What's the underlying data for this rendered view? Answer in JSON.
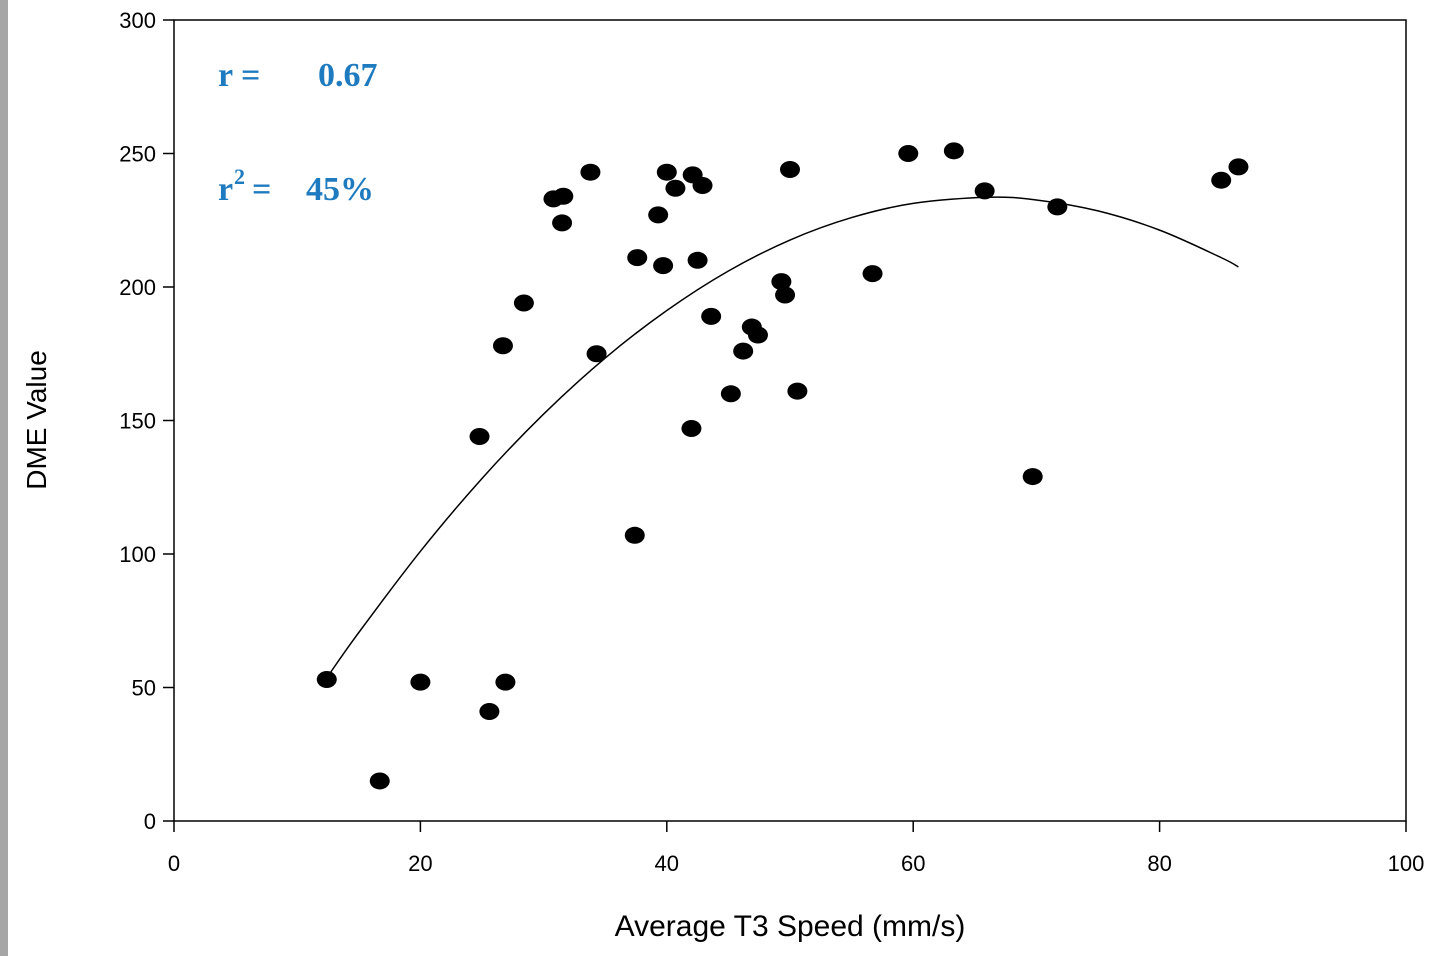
{
  "chart_data": {
    "type": "scatter",
    "x_label": "Average T3 Speed (mm/s)",
    "y_label": "DME Value",
    "xlim": [
      0,
      100
    ],
    "xticks": [
      0,
      20,
      40,
      60,
      80,
      100
    ],
    "ylim": [
      0,
      300
    ],
    "yticks": [
      0,
      50,
      100,
      150,
      200,
      250,
      300
    ],
    "grid": false,
    "color": "#000000",
    "x": [
      12.4,
      16.7,
      20.0,
      24.8,
      25.6,
      26.9,
      26.7,
      28.4,
      30.8,
      31.6,
      31.5,
      33.8,
      34.3,
      37.4,
      37.6,
      39.3,
      39.7,
      40.0,
      40.7,
      42.0,
      42.1,
      42.5,
      42.9,
      43.6,
      45.2,
      46.2,
      46.9,
      47.4,
      49.3,
      49.6,
      50.0,
      50.6,
      56.7,
      59.6,
      63.3,
      65.8,
      69.7,
      71.7,
      85.0,
      86.4
    ],
    "values": [
      53,
      15,
      52,
      144,
      41,
      52,
      178,
      194,
      233,
      234,
      224,
      243,
      175,
      107,
      211,
      227,
      208,
      243,
      237,
      147,
      242,
      210,
      238,
      189,
      160,
      176,
      185,
      182,
      202,
      197,
      244,
      161,
      205,
      250,
      251,
      236,
      129,
      230,
      240,
      245
    ],
    "fit": {
      "color": "#000000",
      "x": [
        12.5,
        15,
        20,
        25,
        30,
        35,
        40,
        45,
        50,
        55,
        60,
        66,
        70,
        75,
        80,
        85,
        86.4
      ],
      "values": [
        54.3,
        70.6,
        101.0,
        128.3,
        152.4,
        173.4,
        191.2,
        206.0,
        217.6,
        226.0,
        231.3,
        233.6,
        232.6,
        228.5,
        221.3,
        211.0,
        207.5
      ]
    },
    "r_text": {
      "label": "r =",
      "value": "0.67"
    },
    "r2_text": {
      "label": "r",
      "superscript": "2",
      "equals": "=",
      "value": "45%"
    }
  }
}
